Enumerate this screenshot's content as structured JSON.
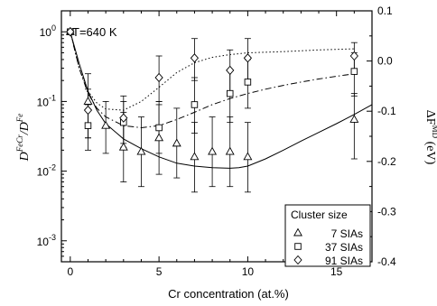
{
  "chart_data": {
    "type": "scatter",
    "annotation": "T=640 K",
    "xlabel": "Cr concentration (at.%)",
    "ylabel_left": {
      "main": "D",
      "sup1": "FeCr",
      "mid": "/D",
      "sup2": "Fe"
    },
    "ylabel_right": {
      "main": "ΔF",
      "sup": "MD",
      "unit": " (eV)"
    },
    "x_range": [
      -0.5,
      17
    ],
    "x_ticks": [
      0,
      5,
      10,
      15
    ],
    "x_tick_labels": [
      "0",
      "5",
      "10",
      "15"
    ],
    "y_left_scale": "log",
    "y_left_range": [
      0.0005,
      2
    ],
    "y_left_ticks": [
      0.001,
      0.01,
      0.1,
      1
    ],
    "y_left_tick_labels": [
      {
        "base": "10",
        "exp": "-3"
      },
      {
        "base": "10",
        "exp": "-2"
      },
      {
        "base": "10",
        "exp": "-1"
      },
      {
        "base": "10",
        "exp": "0"
      }
    ],
    "y_right_range": [
      -0.4,
      0.1
    ],
    "y_right_ticks": [
      0.1,
      0.0,
      -0.1,
      -0.2,
      -0.3,
      -0.4
    ],
    "y_right_tick_labels": [
      "0.1",
      "0.0",
      "-0.1",
      "-0.2",
      "-0.3",
      "-0.4"
    ],
    "legend": {
      "title": "Cluster size",
      "position": "bottom-right"
    },
    "series": [
      {
        "name": "7 SIAs",
        "marker": "triangle",
        "line_style": "solid",
        "points": [
          {
            "x": 0,
            "y": 1.0,
            "lo": 1.0,
            "hi": 1.0
          },
          {
            "x": 1,
            "y": 0.1,
            "lo": 0.03,
            "hi": 0.25
          },
          {
            "x": 2,
            "y": 0.045,
            "lo": 0.018,
            "hi": 0.1
          },
          {
            "x": 3,
            "y": 0.022,
            "lo": 0.007,
            "hi": 0.07
          },
          {
            "x": 4,
            "y": 0.019,
            "lo": 0.006,
            "hi": 0.06
          },
          {
            "x": 5,
            "y": 0.03,
            "lo": 0.009,
            "hi": 0.1
          },
          {
            "x": 6,
            "y": 0.025,
            "lo": 0.008,
            "hi": 0.08
          },
          {
            "x": 7,
            "y": 0.016,
            "lo": 0.005,
            "hi": 0.05
          },
          {
            "x": 8,
            "y": 0.019,
            "lo": 0.006,
            "hi": 0.06
          },
          {
            "x": 9,
            "y": 0.019,
            "lo": 0.006,
            "hi": 0.06
          },
          {
            "x": 10,
            "y": 0.016,
            "lo": 0.005,
            "hi": 0.05
          },
          {
            "x": 16,
            "y": 0.055,
            "lo": 0.015,
            "hi": 0.13
          }
        ],
        "fit": [
          {
            "x": 0,
            "y": 1.0
          },
          {
            "x": 0.5,
            "y": 0.35
          },
          {
            "x": 1,
            "y": 0.14
          },
          {
            "x": 1.5,
            "y": 0.075
          },
          {
            "x": 2,
            "y": 0.048
          },
          {
            "x": 3,
            "y": 0.029
          },
          {
            "x": 4,
            "y": 0.021
          },
          {
            "x": 5,
            "y": 0.016
          },
          {
            "x": 6,
            "y": 0.013
          },
          {
            "x": 7,
            "y": 0.0118
          },
          {
            "x": 8,
            "y": 0.0112
          },
          {
            "x": 9,
            "y": 0.011
          },
          {
            "x": 9.5,
            "y": 0.0112
          },
          {
            "x": 10,
            "y": 0.0118
          },
          {
            "x": 11,
            "y": 0.015
          },
          {
            "x": 12,
            "y": 0.02
          },
          {
            "x": 13,
            "y": 0.027
          },
          {
            "x": 14,
            "y": 0.036
          },
          {
            "x": 15,
            "y": 0.048
          },
          {
            "x": 16,
            "y": 0.065
          },
          {
            "x": 17,
            "y": 0.09
          }
        ]
      },
      {
        "name": "37 SIAs",
        "marker": "square",
        "line_style": "dashdot",
        "points": [
          {
            "x": 0,
            "y": 1.0,
            "lo": 1.0,
            "hi": 1.0
          },
          {
            "x": 1,
            "y": 0.045,
            "lo": 0.02,
            "hi": 0.09
          },
          {
            "x": 3,
            "y": 0.05,
            "lo": 0.022,
            "hi": 0.1
          },
          {
            "x": 5,
            "y": 0.042,
            "lo": 0.018,
            "hi": 0.09
          },
          {
            "x": 7,
            "y": 0.09,
            "lo": 0.035,
            "hi": 0.22
          },
          {
            "x": 9,
            "y": 0.13,
            "lo": 0.05,
            "hi": 0.28
          },
          {
            "x": 10,
            "y": 0.19,
            "lo": 0.08,
            "hi": 0.4
          },
          {
            "x": 16,
            "y": 0.27,
            "lo": 0.12,
            "hi": 0.5
          }
        ],
        "fit": [
          {
            "x": 0,
            "y": 1.0
          },
          {
            "x": 0.5,
            "y": 0.3
          },
          {
            "x": 1,
            "y": 0.13
          },
          {
            "x": 1.5,
            "y": 0.08
          },
          {
            "x": 2,
            "y": 0.06
          },
          {
            "x": 3,
            "y": 0.045
          },
          {
            "x": 4,
            "y": 0.042
          },
          {
            "x": 5,
            "y": 0.045
          },
          {
            "x": 6,
            "y": 0.055
          },
          {
            "x": 7,
            "y": 0.07
          },
          {
            "x": 8,
            "y": 0.09
          },
          {
            "x": 9,
            "y": 0.11
          },
          {
            "x": 10,
            "y": 0.13
          },
          {
            "x": 11,
            "y": 0.15
          },
          {
            "x": 12,
            "y": 0.17
          },
          {
            "x": 13,
            "y": 0.19
          },
          {
            "x": 14,
            "y": 0.21
          },
          {
            "x": 15,
            "y": 0.23
          },
          {
            "x": 16,
            "y": 0.25
          }
        ]
      },
      {
        "name": "91 SIAs",
        "marker": "diamond",
        "line_style": "dotted",
        "points": [
          {
            "x": 0,
            "y": 1.0,
            "lo": 1.0,
            "hi": 1.0
          },
          {
            "x": 1,
            "y": 0.075,
            "lo": 0.03,
            "hi": 0.15
          },
          {
            "x": 3,
            "y": 0.058,
            "lo": 0.025,
            "hi": 0.12
          },
          {
            "x": 5,
            "y": 0.22,
            "lo": 0.1,
            "hi": 0.45
          },
          {
            "x": 7,
            "y": 0.42,
            "lo": 0.2,
            "hi": 0.8
          },
          {
            "x": 9,
            "y": 0.28,
            "lo": 0.13,
            "hi": 0.55
          },
          {
            "x": 10,
            "y": 0.42,
            "lo": 0.2,
            "hi": 0.8
          },
          {
            "x": 16,
            "y": 0.45,
            "lo": 0.25,
            "hi": 0.7
          }
        ],
        "fit": [
          {
            "x": 0,
            "y": 1.0
          },
          {
            "x": 0.5,
            "y": 0.3
          },
          {
            "x": 1,
            "y": 0.14
          },
          {
            "x": 1.5,
            "y": 0.095
          },
          {
            "x": 2,
            "y": 0.078
          },
          {
            "x": 3,
            "y": 0.075
          },
          {
            "x": 4,
            "y": 0.1
          },
          {
            "x": 5,
            "y": 0.16
          },
          {
            "x": 6,
            "y": 0.26
          },
          {
            "x": 7,
            "y": 0.36
          },
          {
            "x": 8,
            "y": 0.43
          },
          {
            "x": 9,
            "y": 0.47
          },
          {
            "x": 10,
            "y": 0.5
          },
          {
            "x": 12,
            "y": 0.52
          },
          {
            "x": 14,
            "y": 0.55
          },
          {
            "x": 16,
            "y": 0.57
          }
        ]
      }
    ]
  }
}
